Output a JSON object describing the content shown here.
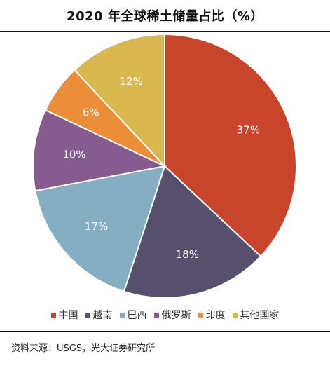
{
  "title": "2020 年全球稀土储量占比（%）",
  "source": "资料来源：USGS，光大证券研究所",
  "chart_data": {
    "type": "pie",
    "title": "2020 年全球稀土储量占比（%）",
    "legend_placement": "bottom",
    "slices": [
      {
        "name": "中国",
        "value": 37,
        "label": "37%",
        "color": "#c8442a"
      },
      {
        "name": "越南",
        "value": 18,
        "label": "18%",
        "color": "#56506e"
      },
      {
        "name": "巴西",
        "value": 17,
        "label": "17%",
        "color": "#86aec3"
      },
      {
        "name": "俄罗斯",
        "value": 10,
        "label": "10%",
        "color": "#865b90"
      },
      {
        "name": "印度",
        "value": 6,
        "label": "6%",
        "color": "#ec8d37"
      },
      {
        "name": "其他国家",
        "value": 12,
        "label": "12%",
        "color": "#d9b84f"
      }
    ]
  }
}
